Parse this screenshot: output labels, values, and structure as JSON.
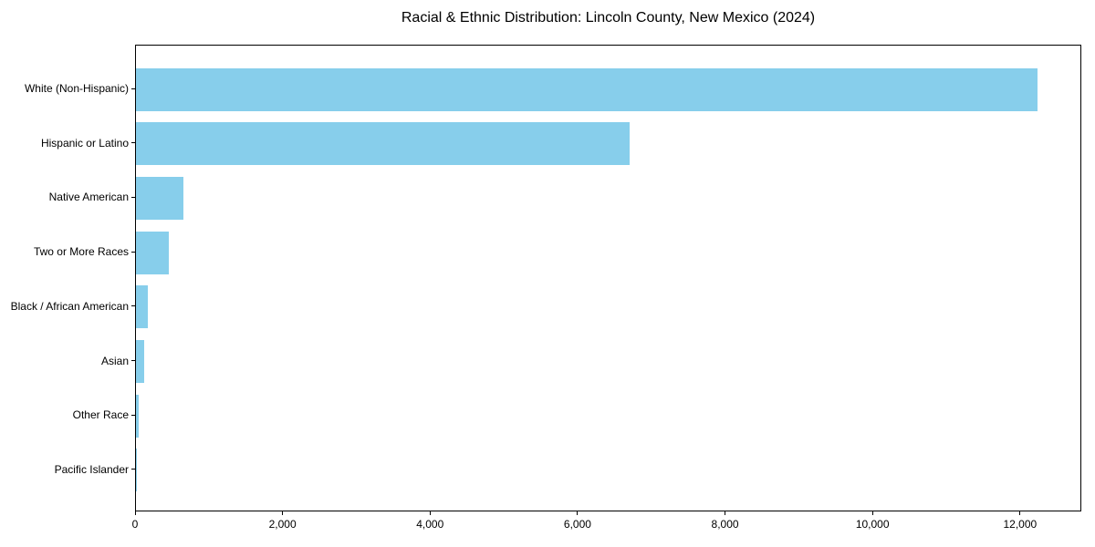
{
  "chart_data": {
    "type": "bar",
    "orientation": "horizontal",
    "title": "Racial & Ethnic Distribution: Lincoln County, New Mexico (2024)",
    "categories": [
      "White (Non-Hispanic)",
      "Hispanic or Latino",
      "Native American",
      "Two or More Races",
      "Black / African American",
      "Asian",
      "Other Race",
      "Pacific Islander"
    ],
    "values": [
      12220,
      6690,
      640,
      440,
      160,
      110,
      35,
      5
    ],
    "xlabel": "",
    "ylabel": "",
    "xlim": [
      0,
      12831
    ],
    "x_ticks": [
      0,
      2000,
      4000,
      6000,
      8000,
      10000,
      12000
    ],
    "x_tick_labels": [
      "0",
      "2,000",
      "4,000",
      "6,000",
      "8,000",
      "10,000",
      "12,000"
    ],
    "bar_color": "#87CEEB",
    "frame_color": "#000000",
    "background_color": "#ffffff",
    "grid": false,
    "legend": null
  }
}
